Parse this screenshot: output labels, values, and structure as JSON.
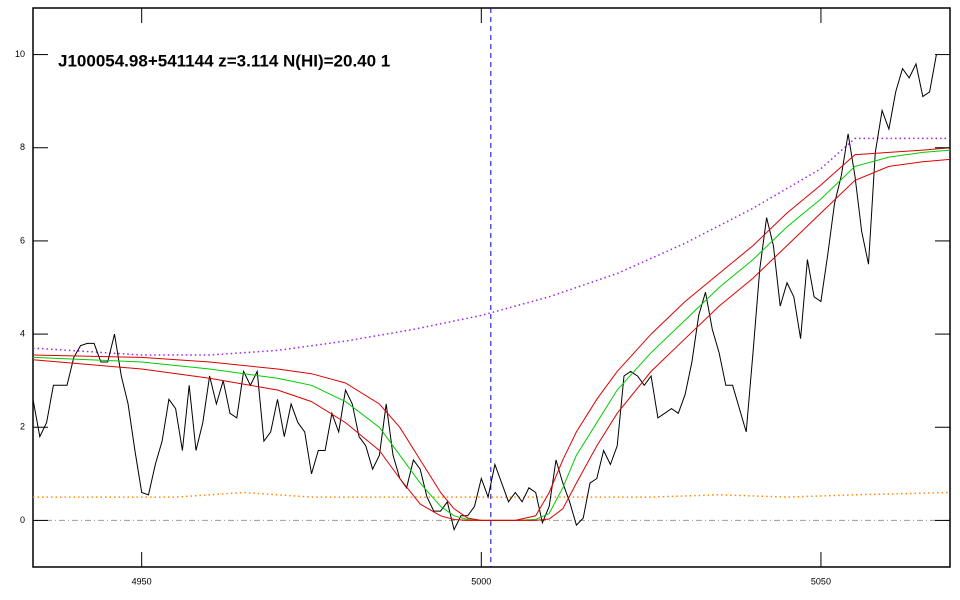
{
  "chart_data": {
    "type": "line",
    "title": "J100054.98+541144 z=3.114 N(HI)=20.40 1",
    "xlim": [
      4934,
      5069
    ],
    "ylim": [
      -1,
      11
    ],
    "xticks": [
      4950,
      5000,
      5050
    ],
    "yticks": [
      0,
      2,
      4,
      6,
      8,
      10
    ],
    "reference_lines": {
      "y": [
        0
      ],
      "x": [
        5001.4
      ]
    },
    "series": [
      {
        "color": "#ff8c00",
        "dash": "dotted",
        "x": [
          4934,
          4945,
          4955,
          4965,
          4975,
          4985,
          4995,
          5005,
          5015,
          5025,
          5035,
          5045,
          5055,
          5069
        ],
        "values": [
          0.5,
          0.5,
          0.5,
          0.6,
          0.5,
          0.5,
          0.5,
          0.5,
          0.5,
          0.5,
          0.55,
          0.5,
          0.55,
          0.6
        ]
      },
      {
        "color": "#a020f0",
        "dash": "dotted",
        "x": [
          4934,
          4950,
          4960,
          4970,
          4980,
          4990,
          5000,
          5010,
          5020,
          5030,
          5040,
          5050,
          5055,
          5060,
          5069
        ],
        "values": [
          3.7,
          3.55,
          3.55,
          3.65,
          3.85,
          4.1,
          4.4,
          4.8,
          5.3,
          5.95,
          6.7,
          7.55,
          8.2,
          8.2,
          8.2
        ]
      },
      {
        "color": "#000000",
        "dash": "solid",
        "x": [
          4934,
          4935,
          4936,
          4937,
          4938,
          4939,
          4940,
          4941,
          4942,
          4943,
          4944,
          4945,
          4946,
          4947,
          4948,
          4949,
          4950,
          4951,
          4952,
          4953,
          4954,
          4955,
          4956,
          4957,
          4958,
          4959,
          4960,
          4961,
          4962,
          4963,
          4964,
          4965,
          4966,
          4967,
          4968,
          4969,
          4970,
          4971,
          4972,
          4973,
          4974,
          4975,
          4976,
          4977,
          4978,
          4979,
          4980,
          4981,
          4982,
          4983,
          4984,
          4985,
          4986,
          4987,
          4988,
          4989,
          4990,
          4991,
          4992,
          4993,
          4994,
          4995,
          4996,
          4997,
          4998,
          4999,
          5000,
          5001,
          5002,
          5003,
          5004,
          5005,
          5006,
          5007,
          5008,
          5009,
          5010,
          5011,
          5012,
          5013,
          5014,
          5015,
          5016,
          5017,
          5018,
          5019,
          5020,
          5021,
          5022,
          5023,
          5024,
          5025,
          5026,
          5027,
          5028,
          5029,
          5030,
          5031,
          5032,
          5033,
          5034,
          5035,
          5036,
          5037,
          5038,
          5039,
          5040,
          5041,
          5042,
          5043,
          5044,
          5045,
          5046,
          5047,
          5048,
          5049,
          5050,
          5051,
          5052,
          5053,
          5054,
          5055,
          5056,
          5057,
          5058,
          5059,
          5060,
          5061,
          5062,
          5063,
          5064,
          5065,
          5066,
          5067
        ],
        "values": [
          2.6,
          1.8,
          2.1,
          2.9,
          2.9,
          2.9,
          3.5,
          3.75,
          3.8,
          3.8,
          3.4,
          3.4,
          4.0,
          3.1,
          2.5,
          1.5,
          0.6,
          0.55,
          1.2,
          1.7,
          2.6,
          2.4,
          1.5,
          2.9,
          1.5,
          2.1,
          3.1,
          2.5,
          3.0,
          2.3,
          2.2,
          3.2,
          2.9,
          3.2,
          1.7,
          1.9,
          2.6,
          1.8,
          2.5,
          2.1,
          1.9,
          1.0,
          1.5,
          1.5,
          2.3,
          1.9,
          2.8,
          2.5,
          1.8,
          1.6,
          1.1,
          1.4,
          2.5,
          1.4,
          0.9,
          0.7,
          1.3,
          1.1,
          0.5,
          0.2,
          0.2,
          0.4,
          -0.2,
          0.1,
          0.1,
          0.3,
          0.9,
          0.5,
          1.2,
          0.8,
          0.4,
          0.6,
          0.4,
          0.7,
          0.6,
          -0.05,
          0.3,
          1.3,
          0.8,
          0.4,
          -0.1,
          0.05,
          0.8,
          0.9,
          1.5,
          1.2,
          1.6,
          3.1,
          3.2,
          3.1,
          2.9,
          3.1,
          2.2,
          2.3,
          2.4,
          2.3,
          2.7,
          3.4,
          4.4,
          4.9,
          4.1,
          3.6,
          2.9,
          2.9,
          2.4,
          1.9,
          3.6,
          5.4,
          6.5,
          5.9,
          4.6,
          5.1,
          4.8,
          3.9,
          5.6,
          4.8,
          4.7,
          5.7,
          6.8,
          7.4,
          8.3,
          7.4,
          6.2,
          5.5,
          7.9,
          8.8,
          8.4,
          9.2,
          9.7,
          9.5,
          9.8,
          9.1,
          9.2,
          10.0
        ]
      },
      {
        "color": "#00cc00",
        "dash": "solid",
        "x": [
          4934,
          4950,
          4960,
          4970,
          4975,
          4980,
          4985,
          4988,
          4991,
          4994,
          4996,
          4998,
          5000,
          5005,
          5008,
          5010,
          5012,
          5014,
          5017,
          5020,
          5025,
          5030,
          5035,
          5040,
          5045,
          5050,
          5055,
          5060,
          5065,
          5069
        ],
        "values": [
          3.5,
          3.4,
          3.25,
          3.05,
          2.9,
          2.55,
          2.0,
          1.4,
          0.8,
          0.3,
          0.1,
          0.02,
          0,
          0,
          0.02,
          0.15,
          0.7,
          1.4,
          2.1,
          2.8,
          3.6,
          4.3,
          5.0,
          5.6,
          6.3,
          6.9,
          7.6,
          7.8,
          7.9,
          7.95
        ]
      },
      {
        "color": "#dd0000",
        "dash": "solid",
        "x": [
          4934,
          4950,
          4960,
          4970,
          4975,
          4980,
          4985,
          4988,
          4991,
          4994,
          4996,
          4998,
          5000,
          5005,
          5008,
          5010,
          5012,
          5014,
          5017,
          5020,
          5025,
          5030,
          5035,
          5040,
          5045,
          5050,
          5055,
          5060,
          5065,
          5069
        ],
        "values": [
          3.55,
          3.5,
          3.4,
          3.25,
          3.15,
          2.95,
          2.5,
          2.0,
          1.3,
          0.6,
          0.25,
          0.05,
          0,
          0,
          0.1,
          0.6,
          1.3,
          1.9,
          2.6,
          3.2,
          4.0,
          4.7,
          5.3,
          5.9,
          6.6,
          7.2,
          7.85,
          7.9,
          7.95,
          8.0
        ]
      },
      {
        "color": "#dd0000",
        "dash": "solid",
        "x": [
          4934,
          4950,
          4960,
          4970,
          4975,
          4980,
          4985,
          4988,
          4991,
          4994,
          4996,
          4998,
          5000,
          5005,
          5008,
          5010,
          5012,
          5014,
          5017,
          5020,
          5025,
          5030,
          5035,
          5040,
          5045,
          5050,
          5055,
          5060,
          5065,
          5069
        ],
        "values": [
          3.45,
          3.25,
          3.05,
          2.8,
          2.55,
          2.1,
          1.5,
          0.9,
          0.35,
          0.1,
          0.02,
          0,
          0,
          0,
          0,
          0.03,
          0.25,
          0.8,
          1.6,
          2.3,
          3.2,
          3.9,
          4.6,
          5.2,
          5.9,
          6.6,
          7.3,
          7.6,
          7.7,
          7.75
        ]
      }
    ]
  }
}
